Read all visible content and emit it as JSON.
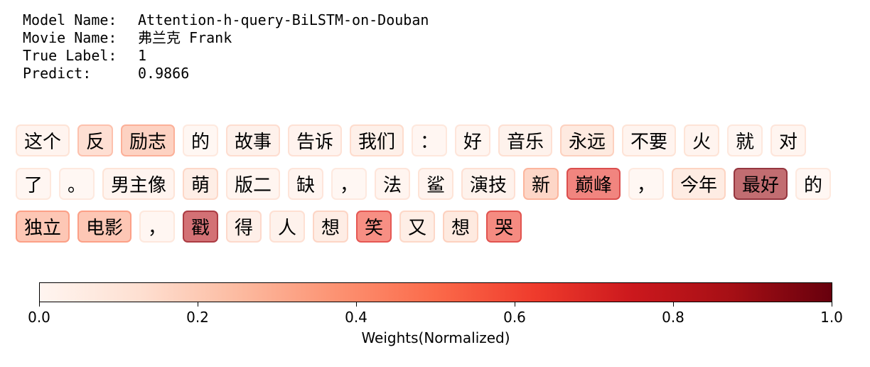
{
  "meta": {
    "rows": [
      {
        "label": "Model Name:",
        "value": "Attention-h-query-BiLSTM-on-Douban"
      },
      {
        "label": "Movie Name:",
        "value": "弗兰克 Frank"
      },
      {
        "label": "True Label:",
        "value": "1"
      },
      {
        "label": "Predict:",
        "value": "0.9866"
      }
    ]
  },
  "chart_data": {
    "type": "heatmap",
    "colormap": "Reds",
    "tokens": [
      {
        "text": "这个",
        "weight": 0.05
      },
      {
        "text": "反",
        "weight": 0.2
      },
      {
        "text": "励志",
        "weight": 0.27
      },
      {
        "text": "的",
        "weight": 0.02
      },
      {
        "text": "故事",
        "weight": 0.08
      },
      {
        "text": "告诉",
        "weight": 0.06
      },
      {
        "text": "我们",
        "weight": 0.09
      },
      {
        "text": "：",
        "weight": 0.03
      },
      {
        "text": "好",
        "weight": 0.04
      },
      {
        "text": "音乐",
        "weight": 0.07
      },
      {
        "text": "永远",
        "weight": 0.14
      },
      {
        "text": "不要",
        "weight": 0.05
      },
      {
        "text": "火",
        "weight": 0.05
      },
      {
        "text": "就",
        "weight": 0.03
      },
      {
        "text": "对",
        "weight": 0.04
      },
      {
        "text": "了",
        "weight": 0.03
      },
      {
        "text": "。",
        "weight": 0.02
      },
      {
        "text": "男主像",
        "weight": 0.05
      },
      {
        "text": "萌",
        "weight": 0.11
      },
      {
        "text": "版二",
        "weight": 0.04
      },
      {
        "text": "缺",
        "weight": 0.04
      },
      {
        "text": "，",
        "weight": 0.02
      },
      {
        "text": "法",
        "weight": 0.04
      },
      {
        "text": "鲨",
        "weight": 0.05
      },
      {
        "text": "演技",
        "weight": 0.07
      },
      {
        "text": "新",
        "weight": 0.25
      },
      {
        "text": "巅峰",
        "weight": 0.65
      },
      {
        "text": "，",
        "weight": 0.02
      },
      {
        "text": "今年",
        "weight": 0.13
      },
      {
        "text": "最好",
        "weight": 0.9
      },
      {
        "text": "的",
        "weight": 0.02
      },
      {
        "text": "独立",
        "weight": 0.33
      },
      {
        "text": "电影",
        "weight": 0.33
      },
      {
        "text": "，",
        "weight": 0.03
      },
      {
        "text": "戳",
        "weight": 0.82
      },
      {
        "text": "得",
        "weight": 0.1
      },
      {
        "text": "人",
        "weight": 0.07
      },
      {
        "text": "想",
        "weight": 0.12
      },
      {
        "text": "笑",
        "weight": 0.6
      },
      {
        "text": "又",
        "weight": 0.11
      },
      {
        "text": "想",
        "weight": 0.14
      },
      {
        "text": "哭",
        "weight": 0.62
      }
    ],
    "colorbar": {
      "xlabel": "Weights(Normalized)",
      "range": [
        0.0,
        1.0
      ],
      "ticks": [
        "0.0",
        "0.2",
        "0.4",
        "0.6",
        "0.8",
        "1.0"
      ]
    }
  }
}
